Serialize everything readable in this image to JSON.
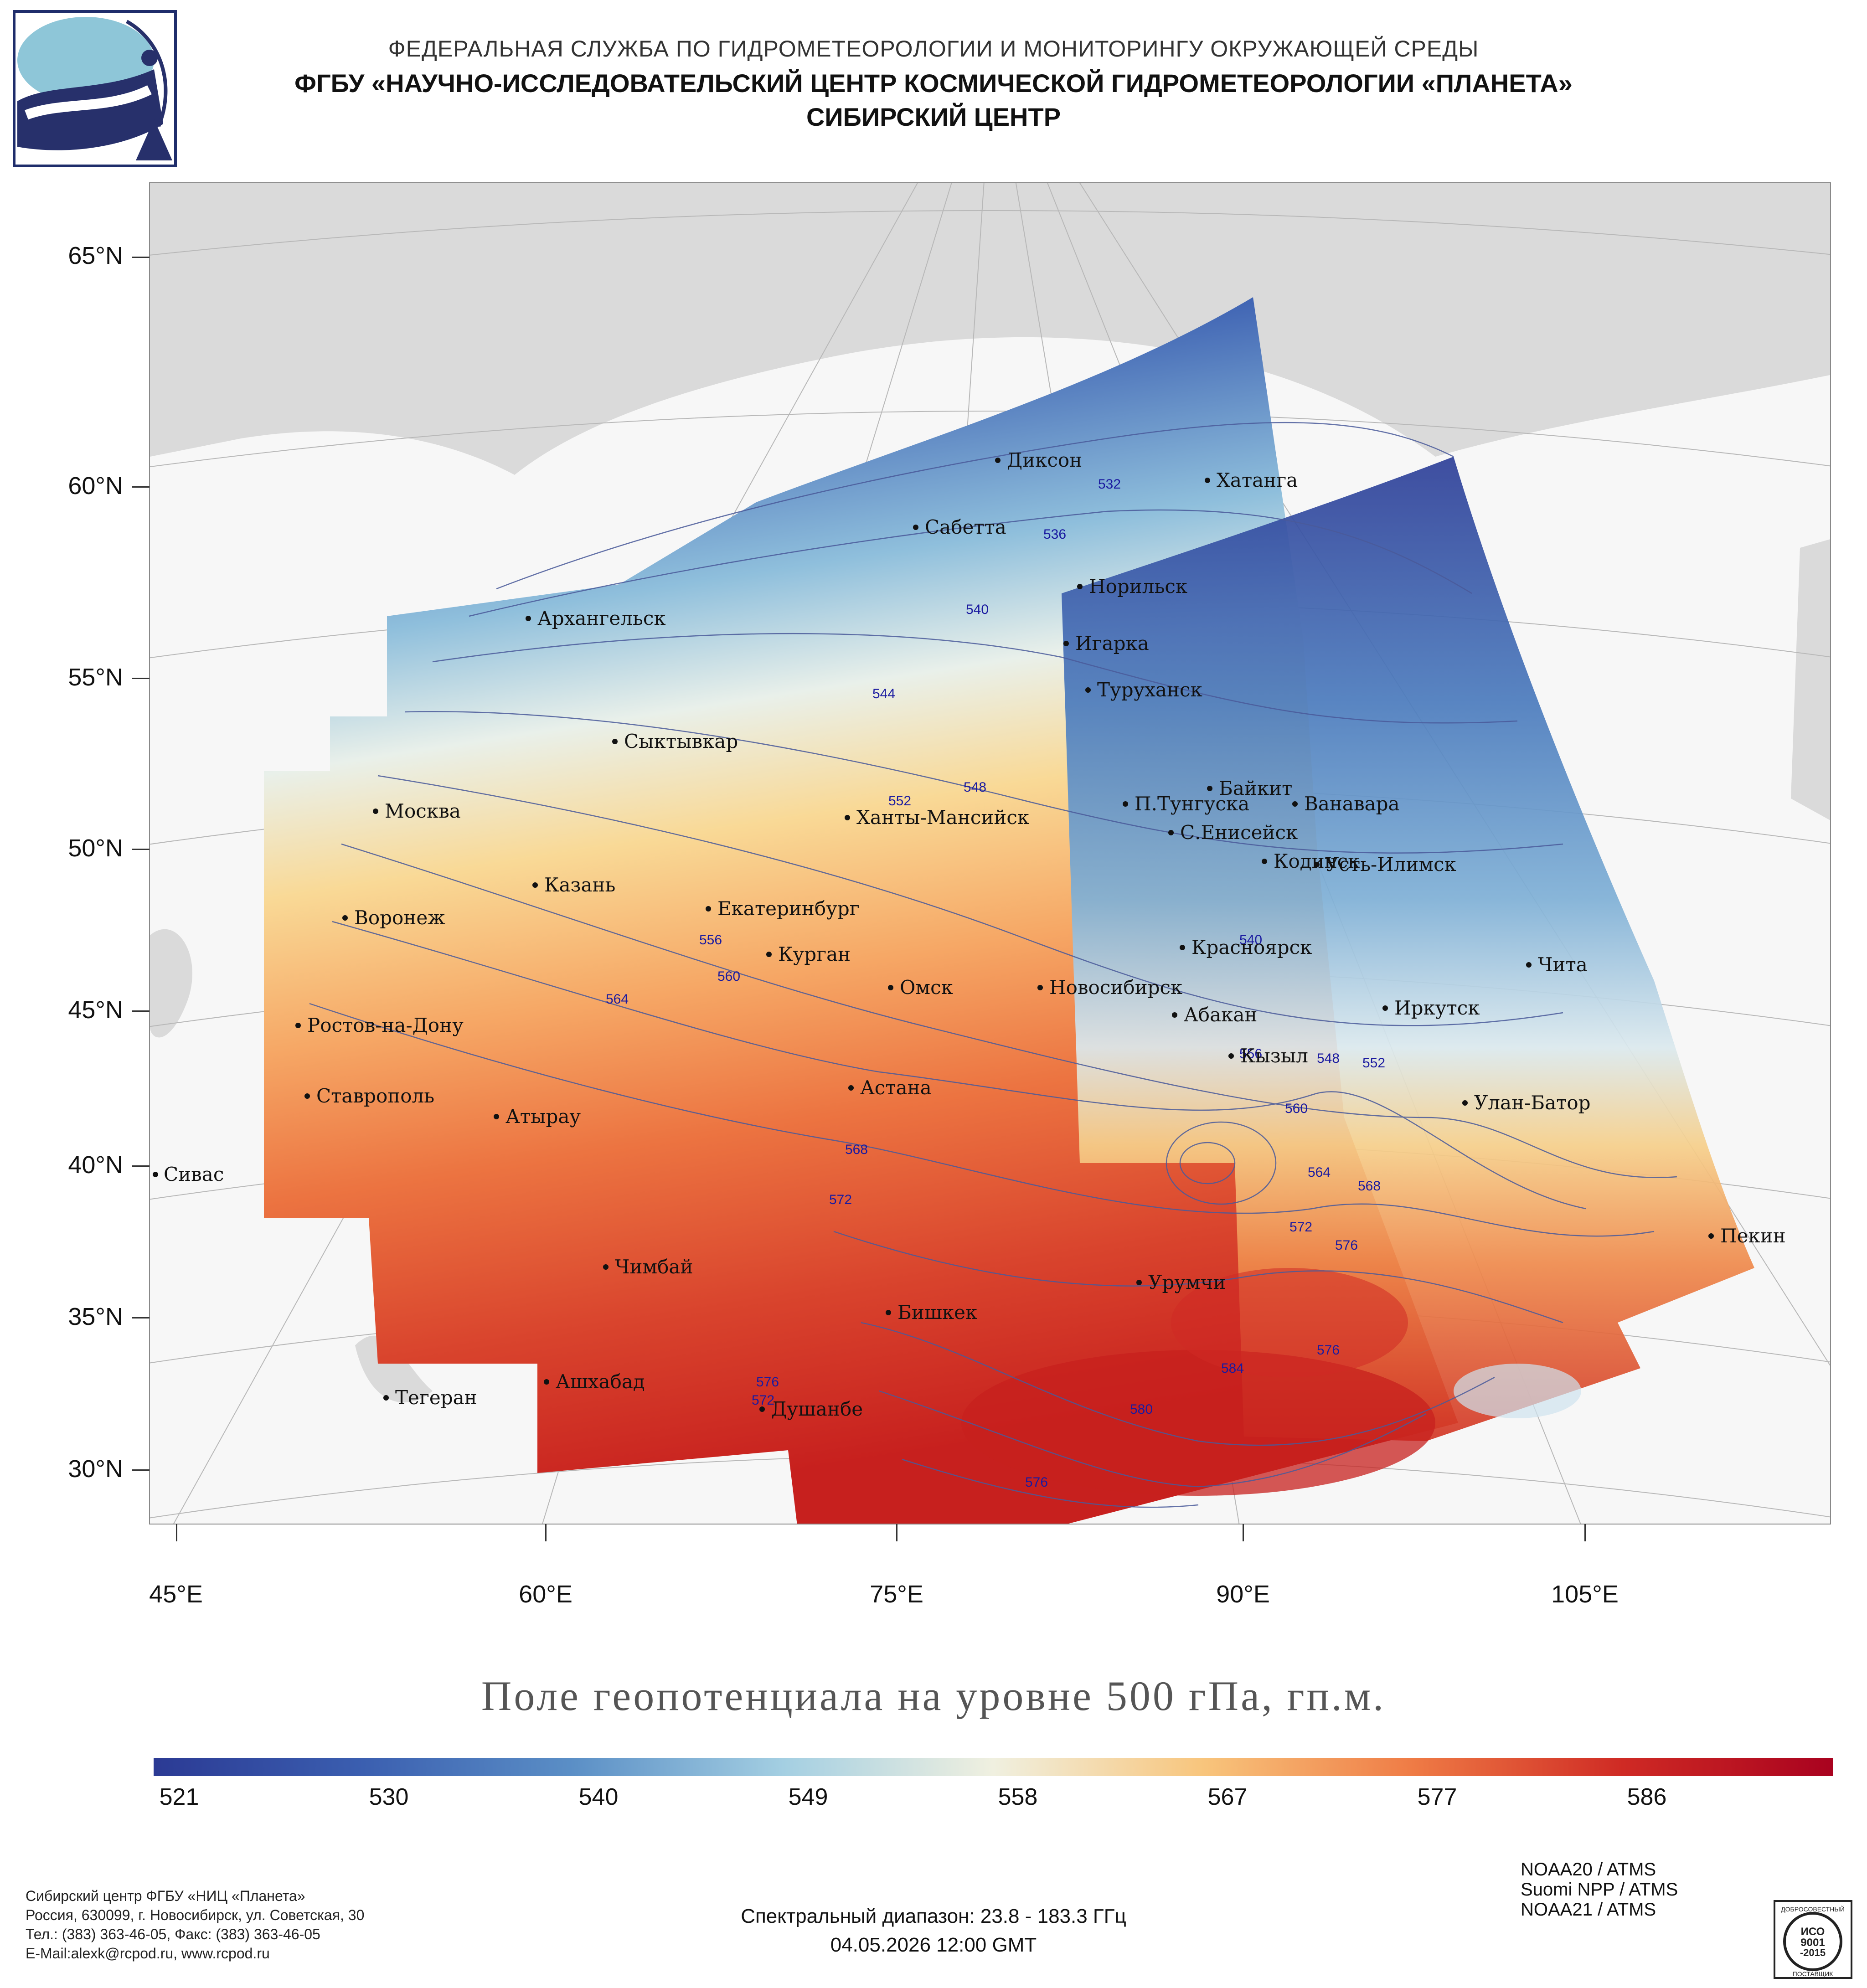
{
  "header": {
    "line1": "ФЕДЕРАЛЬНАЯ СЛУЖБА ПО ГИДРОМЕТЕОРОЛОГИИ И МОНИТОРИНГУ ОКРУЖАЮЩЕЙ СРЕДЫ",
    "line2": "ФГБУ «НАУЧНО-ИССЛЕДОВАТЕЛЬСКИЙ ЦЕНТР КОСМИЧЕСКОЙ ГИДРОМЕТЕОРОЛОГИИ «ПЛАНЕТА»",
    "line3": "СИБИРСКИЙ ЦЕНТР"
  },
  "map": {
    "lat_labels": [
      "65°N",
      "60°N",
      "55°N",
      "50°N",
      "45°N",
      "40°N",
      "35°N",
      "30°N"
    ],
    "lon_labels": [
      "45°E",
      "60°E",
      "75°E",
      "90°E",
      "105°E"
    ],
    "cities": [
      {
        "name": "Диксон"
      },
      {
        "name": "Хатанга"
      },
      {
        "name": "Сабетта"
      },
      {
        "name": "Норильск"
      },
      {
        "name": "Архангельск"
      },
      {
        "name": "Игарка"
      },
      {
        "name": "Туруханск"
      },
      {
        "name": "Сыктывкар"
      },
      {
        "name": "Байкит"
      },
      {
        "name": "П.Тунгуска"
      },
      {
        "name": "Ванавара"
      },
      {
        "name": "Москва"
      },
      {
        "name": "Ханты-Мансийск"
      },
      {
        "name": "С.Енисейск"
      },
      {
        "name": "Кодинск"
      },
      {
        "name": "Усть-Илимск"
      },
      {
        "name": "Казань"
      },
      {
        "name": "Екатеринбург"
      },
      {
        "name": "Воронеж"
      },
      {
        "name": "Красноярск"
      },
      {
        "name": "Курган"
      },
      {
        "name": "Чита"
      },
      {
        "name": "Омск"
      },
      {
        "name": "Новосибирск"
      },
      {
        "name": "Иркутск"
      },
      {
        "name": "Ростов-на-Дону"
      },
      {
        "name": "Абакан"
      },
      {
        "name": "Кызыл"
      },
      {
        "name": "Ставрополь"
      },
      {
        "name": "Астана"
      },
      {
        "name": "Улан-Батор"
      },
      {
        "name": "Атырау"
      },
      {
        "name": "Сивас"
      },
      {
        "name": "Пекин"
      },
      {
        "name": "Чимбай"
      },
      {
        "name": "Урумчи"
      },
      {
        "name": "Бишкек"
      },
      {
        "name": "Ашхабад"
      },
      {
        "name": "Тегеран"
      },
      {
        "name": "Душанбе"
      }
    ],
    "contour_labels": [
      "532",
      "536",
      "540",
      "544",
      "548",
      "552",
      "556",
      "560",
      "564",
      "568",
      "572",
      "576",
      "580",
      "584",
      "540",
      "548",
      "552",
      "556",
      "560",
      "564",
      "568",
      "572",
      "576",
      "576",
      "572",
      "576"
    ]
  },
  "map_title": "Поле геопотенциала на уровне 500 гПа, гп.м.",
  "colorbar": {
    "labels": [
      "521",
      "530",
      "540",
      "549",
      "558",
      "567",
      "577",
      "586"
    ],
    "colors": [
      "#2b3a94",
      "#3b5fb0",
      "#5b8fc6",
      "#a4cfe2",
      "#f0f0e0",
      "#f8c57c",
      "#ef7b45",
      "#cf2a24",
      "#a9021f"
    ]
  },
  "footer": {
    "org1": "Сибирский центр ФГБУ «НИЦ «Планета»",
    "org2": "Россия, 630099, г. Новосибирск, ул. Советская, 30",
    "org3": "Тел.: (383) 363-46-05, Факс: (383) 363-46-05",
    "org4": "E-Mail:alexk@rcpod.ru, www.rcpod.ru",
    "spectral": "Спектральный диапазон: 23.8 - 183.3 ГГц",
    "datetime": "04.05.2026 12:00 GMT",
    "sensors": [
      "NOAA20 / ATMS",
      "Suomi NPP / ATMS",
      "NOAA21 / ATMS"
    ],
    "cert": {
      "top": "ДОБРОСОВЕСТНЫЙ",
      "iso": "ИСО",
      "num": "9001",
      "year": "-2015",
      "bottom": "ПОСТАВЩИК"
    }
  }
}
